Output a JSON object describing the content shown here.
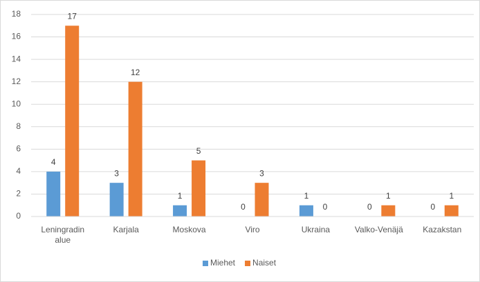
{
  "chart_data": {
    "type": "bar",
    "categories": [
      "Leningradin alue",
      "Karjala",
      "Moskova",
      "Viro",
      "Ukraina",
      "Valko-Venäjä",
      "Kazakstan"
    ],
    "series": [
      {
        "name": "Miehet",
        "color": "#5b9bd5",
        "values": [
          4,
          3,
          1,
          0,
          1,
          0,
          0
        ]
      },
      {
        "name": "Naiset",
        "color": "#ed7d31",
        "values": [
          17,
          12,
          5,
          3,
          0,
          1,
          1
        ]
      }
    ],
    "ylim": [
      0,
      18
    ],
    "yticks": [
      0,
      2,
      4,
      6,
      8,
      10,
      12,
      14,
      16,
      18
    ],
    "grid": true,
    "legend": "bottom"
  }
}
